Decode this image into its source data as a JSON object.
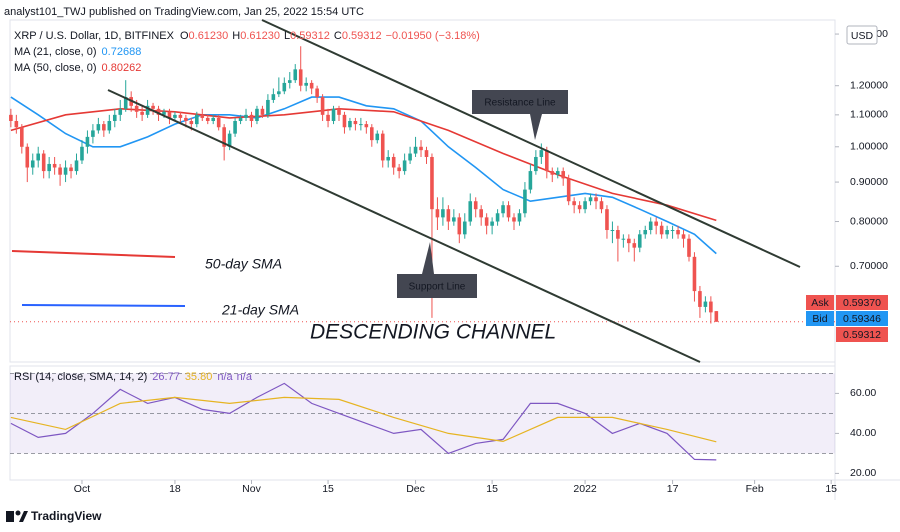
{
  "header": {
    "publisher": "analyst101_TWJ published on TradingView.com, Jan 25, 2022 15:54 UTC",
    "symbol": "XRP / U.S. Dollar, 1D, BITFINEX",
    "ohlc": [
      {
        "key": "O",
        "value": "0.61230"
      },
      {
        "key": "H",
        "value": "0.61230"
      },
      {
        "key": "L",
        "value": "0.59312"
      },
      {
        "key": "C",
        "value": "0.59312"
      }
    ],
    "change": "−0.01950 (−3.18%)"
  },
  "chart_data": [
    {
      "type": "candlestick",
      "currency": "USD",
      "log": true,
      "up_color": "#26a69a",
      "down_color": "#ef5350",
      "xlim": [
        -0.16,
        150.7
      ],
      "xticks": [
        {
          "value": 13,
          "label": "Oct"
        },
        {
          "value": 30,
          "label": "18"
        },
        {
          "value": 44,
          "label": "Nov"
        },
        {
          "value": 58,
          "label": "15"
        },
        {
          "value": 74,
          "label": "Dec"
        },
        {
          "value": 88,
          "label": "15"
        },
        {
          "value": 105,
          "label": "2022"
        },
        {
          "value": 121,
          "label": "17"
        },
        {
          "value": 136,
          "label": "Feb"
        },
        {
          "value": 150,
          "label": "15"
        }
      ],
      "ylim": [
        0.526,
        1.46
      ],
      "yticks": [
        {
          "value": 1.4,
          "label": "1.40000"
        },
        {
          "value": 1.2,
          "label": "1.20000"
        },
        {
          "value": 1.1,
          "label": "1.10000"
        },
        {
          "value": 1.0,
          "label": "1.00000"
        },
        {
          "value": 0.9,
          "label": "0.90000"
        },
        {
          "value": 0.8,
          "label": "0.80000"
        },
        {
          "value": 0.7,
          "label": "0.70000"
        }
      ],
      "quotes": [
        {
          "name": "Ask",
          "value": "0.59370",
          "color": "#ef5350"
        },
        {
          "name": "Bid",
          "value": "0.59346",
          "color": "#2196f3"
        },
        {
          "value": "0.59312",
          "color": "#ef5350"
        }
      ],
      "candles": [
        [
          1.1,
          1.12,
          1.06,
          1.08
        ],
        [
          1.08,
          1.1,
          1.04,
          1.06
        ],
        [
          1.06,
          1.07,
          0.98,
          1.0
        ],
        [
          1.0,
          1.01,
          0.9,
          0.94
        ],
        [
          0.94,
          0.98,
          0.92,
          0.96
        ],
        [
          0.96,
          1.0,
          0.94,
          0.98
        ],
        [
          0.98,
          0.99,
          0.91,
          0.93
        ],
        [
          0.93,
          0.97,
          0.91,
          0.95
        ],
        [
          0.95,
          0.97,
          0.92,
          0.94
        ],
        [
          0.94,
          0.95,
          0.89,
          0.92
        ],
        [
          0.92,
          0.96,
          0.9,
          0.94
        ],
        [
          0.94,
          0.95,
          0.91,
          0.93
        ],
        [
          0.93,
          0.98,
          0.92,
          0.96
        ],
        [
          0.96,
          1.02,
          0.95,
          1.0
        ],
        [
          1.0,
          1.05,
          0.98,
          1.03
        ],
        [
          1.03,
          1.07,
          1.01,
          1.05
        ],
        [
          1.05,
          1.09,
          1.04,
          1.07
        ],
        [
          1.07,
          1.08,
          1.03,
          1.05
        ],
        [
          1.05,
          1.1,
          1.04,
          1.08
        ],
        [
          1.08,
          1.12,
          1.06,
          1.1
        ],
        [
          1.1,
          1.15,
          1.08,
          1.12
        ],
        [
          1.12,
          1.22,
          1.11,
          1.16
        ],
        [
          1.16,
          1.18,
          1.11,
          1.13
        ],
        [
          1.13,
          1.15,
          1.09,
          1.11
        ],
        [
          1.11,
          1.13,
          1.08,
          1.1
        ],
        [
          1.1,
          1.15,
          1.09,
          1.13
        ],
        [
          1.13,
          1.14,
          1.1,
          1.12
        ],
        [
          1.12,
          1.13,
          1.08,
          1.1
        ],
        [
          1.1,
          1.12,
          1.09,
          1.11
        ],
        [
          1.11,
          1.12,
          1.07,
          1.09
        ],
        [
          1.09,
          1.11,
          1.08,
          1.1
        ],
        [
          1.1,
          1.11,
          1.07,
          1.09
        ],
        [
          1.09,
          1.1,
          1.06,
          1.08
        ],
        [
          1.08,
          1.09,
          1.05,
          1.07
        ],
        [
          1.07,
          1.11,
          1.06,
          1.1
        ],
        [
          1.1,
          1.12,
          1.08,
          1.09
        ],
        [
          1.09,
          1.1,
          1.07,
          1.08
        ],
        [
          1.08,
          1.1,
          1.07,
          1.09
        ],
        [
          1.09,
          1.1,
          1.05,
          1.06
        ],
        [
          1.06,
          1.07,
          0.96,
          1.0
        ],
        [
          1.0,
          1.05,
          0.99,
          1.04
        ],
        [
          1.04,
          1.09,
          1.03,
          1.08
        ],
        [
          1.08,
          1.1,
          1.07,
          1.09
        ],
        [
          1.09,
          1.12,
          1.08,
          1.1
        ],
        [
          1.1,
          1.11,
          1.06,
          1.08
        ],
        [
          1.08,
          1.13,
          1.07,
          1.12
        ],
        [
          1.12,
          1.13,
          1.09,
          1.1
        ],
        [
          1.1,
          1.17,
          1.09,
          1.15
        ],
        [
          1.15,
          1.19,
          1.14,
          1.17
        ],
        [
          1.17,
          1.23,
          1.16,
          1.18
        ],
        [
          1.18,
          1.23,
          1.17,
          1.21
        ],
        [
          1.21,
          1.25,
          1.19,
          1.22
        ],
        [
          1.22,
          1.28,
          1.21,
          1.26
        ],
        [
          1.26,
          1.35,
          1.18,
          1.2
        ],
        [
          1.2,
          1.23,
          1.18,
          1.21
        ],
        [
          1.21,
          1.22,
          1.17,
          1.19
        ],
        [
          1.19,
          1.2,
          1.14,
          1.16
        ],
        [
          1.16,
          1.17,
          1.08,
          1.1
        ],
        [
          1.1,
          1.12,
          1.06,
          1.08
        ],
        [
          1.08,
          1.13,
          1.07,
          1.12
        ],
        [
          1.12,
          1.13,
          1.08,
          1.1
        ],
        [
          1.1,
          1.11,
          1.04,
          1.06
        ],
        [
          1.06,
          1.09,
          1.05,
          1.08
        ],
        [
          1.08,
          1.09,
          1.05,
          1.07
        ],
        [
          1.07,
          1.09,
          1.05,
          1.07
        ],
        [
          1.07,
          1.08,
          1.04,
          1.06
        ],
        [
          1.06,
          1.07,
          1.0,
          1.02
        ],
        [
          1.02,
          1.05,
          1.01,
          1.04
        ],
        [
          1.04,
          1.05,
          0.94,
          0.96
        ],
        [
          0.96,
          0.99,
          0.94,
          0.97
        ],
        [
          0.97,
          0.98,
          0.92,
          0.94
        ],
        [
          0.94,
          0.95,
          0.91,
          0.93
        ],
        [
          0.93,
          0.98,
          0.92,
          0.96
        ],
        [
          0.96,
          1.0,
          0.95,
          0.98
        ],
        [
          0.98,
          1.03,
          0.97,
          1.0
        ],
        [
          1.0,
          1.02,
          0.97,
          0.99
        ],
        [
          0.99,
          1.0,
          0.95,
          0.97
        ],
        [
          0.97,
          0.98,
          0.6,
          0.83
        ],
        [
          0.83,
          0.86,
          0.78,
          0.81
        ],
        [
          0.81,
          0.86,
          0.79,
          0.83
        ],
        [
          0.83,
          0.84,
          0.78,
          0.8
        ],
        [
          0.8,
          0.83,
          0.79,
          0.81
        ],
        [
          0.81,
          0.82,
          0.75,
          0.77
        ],
        [
          0.77,
          0.82,
          0.76,
          0.8
        ],
        [
          0.8,
          0.87,
          0.79,
          0.85
        ],
        [
          0.85,
          0.86,
          0.81,
          0.83
        ],
        [
          0.83,
          0.84,
          0.79,
          0.81
        ],
        [
          0.81,
          0.82,
          0.77,
          0.79
        ],
        [
          0.79,
          0.81,
          0.77,
          0.8
        ],
        [
          0.8,
          0.83,
          0.79,
          0.82
        ],
        [
          0.82,
          0.85,
          0.81,
          0.84
        ],
        [
          0.84,
          0.85,
          0.8,
          0.81
        ],
        [
          0.81,
          0.82,
          0.78,
          0.8
        ],
        [
          0.8,
          0.83,
          0.79,
          0.82
        ],
        [
          0.82,
          0.9,
          0.81,
          0.88
        ],
        [
          0.88,
          0.95,
          0.87,
          0.93
        ],
        [
          0.93,
          0.99,
          0.92,
          0.97
        ],
        [
          0.97,
          1.01,
          0.95,
          0.99
        ],
        [
          0.99,
          1.0,
          0.91,
          0.93
        ],
        [
          0.93,
          0.94,
          0.9,
          0.92
        ],
        [
          0.92,
          0.94,
          0.91,
          0.93
        ],
        [
          0.93,
          0.94,
          0.89,
          0.91
        ],
        [
          0.91,
          0.92,
          0.84,
          0.85
        ],
        [
          0.85,
          0.86,
          0.82,
          0.84
        ],
        [
          0.84,
          0.85,
          0.82,
          0.83
        ],
        [
          0.83,
          0.86,
          0.82,
          0.85
        ],
        [
          0.85,
          0.87,
          0.84,
          0.86
        ],
        [
          0.86,
          0.87,
          0.83,
          0.85
        ],
        [
          0.85,
          0.86,
          0.82,
          0.83
        ],
        [
          0.83,
          0.84,
          0.76,
          0.78
        ],
        [
          0.78,
          0.8,
          0.75,
          0.78
        ],
        [
          0.78,
          0.79,
          0.71,
          0.76
        ],
        [
          0.76,
          0.77,
          0.74,
          0.76
        ],
        [
          0.76,
          0.77,
          0.73,
          0.75
        ],
        [
          0.75,
          0.76,
          0.71,
          0.74
        ],
        [
          0.74,
          0.78,
          0.73,
          0.77
        ],
        [
          0.77,
          0.79,
          0.76,
          0.78
        ],
        [
          0.78,
          0.81,
          0.77,
          0.8
        ],
        [
          0.8,
          0.81,
          0.77,
          0.79
        ],
        [
          0.79,
          0.8,
          0.76,
          0.77
        ],
        [
          0.77,
          0.79,
          0.76,
          0.78
        ],
        [
          0.78,
          0.79,
          0.76,
          0.78
        ],
        [
          0.78,
          0.79,
          0.76,
          0.77
        ],
        [
          0.77,
          0.78,
          0.74,
          0.76
        ],
        [
          0.76,
          0.77,
          0.71,
          0.72
        ],
        [
          0.72,
          0.73,
          0.63,
          0.65
        ],
        [
          0.65,
          0.66,
          0.6,
          0.62
        ],
        [
          0.62,
          0.64,
          0.61,
          0.63
        ],
        [
          0.63,
          0.64,
          0.59,
          0.61
        ],
        [
          0.6123,
          0.6123,
          0.59312,
          0.59312
        ]
      ],
      "series": [
        {
          "name": "MA (21, close, 0)",
          "value_label": "0.72688",
          "color": "#2196f3",
          "x": [
            0,
            5,
            10,
            15,
            20,
            25,
            30,
            35,
            40,
            45,
            50,
            55,
            60,
            65,
            70,
            75,
            80,
            85,
            90,
            95,
            100,
            105,
            110,
            115,
            120,
            125,
            129
          ],
          "values": [
            1.16,
            1.1,
            1.04,
            1.0,
            1.0,
            1.03,
            1.07,
            1.1,
            1.1,
            1.09,
            1.12,
            1.16,
            1.16,
            1.13,
            1.12,
            1.08,
            1.0,
            0.94,
            0.88,
            0.85,
            0.86,
            0.87,
            0.86,
            0.83,
            0.8,
            0.77,
            0.72688
          ]
        },
        {
          "name": "MA (50, close, 0)",
          "value_label": "0.80262",
          "color": "#e53935",
          "x": [
            0,
            10,
            20,
            30,
            40,
            50,
            60,
            70,
            80,
            90,
            100,
            110,
            120,
            129
          ],
          "values": [
            1.05,
            1.1,
            1.12,
            1.11,
            1.09,
            1.1,
            1.12,
            1.11,
            1.05,
            0.98,
            0.92,
            0.87,
            0.84,
            0.80262
          ]
        }
      ]
    },
    {
      "type": "line",
      "title": "RSI (14, close, SMA, 14, 2)",
      "ylim": [
        16.7,
        73.7
      ],
      "yticks": [
        {
          "value": 60,
          "label": "60.00"
        },
        {
          "value": 40,
          "label": "40.00"
        },
        {
          "value": 20,
          "label": "20.00"
        }
      ],
      "levels": [
        70,
        50,
        30
      ],
      "band_color": "#7e57c2",
      "series": [
        {
          "value_label": "26.77",
          "color": "#7e57c2",
          "x": [
            0,
            5,
            10,
            15,
            20,
            25,
            30,
            35,
            40,
            45,
            50,
            55,
            60,
            65,
            70,
            75,
            80,
            85,
            90,
            95,
            100,
            105,
            110,
            115,
            120,
            125,
            129
          ],
          "values": [
            45,
            38,
            40,
            50,
            62,
            55,
            58,
            52,
            50,
            58,
            65,
            55,
            50,
            45,
            40,
            42,
            30,
            35,
            37,
            55,
            55,
            50,
            40,
            45,
            40,
            27,
            26.77
          ]
        },
        {
          "value_label": "35.80",
          "color": "#e6b422",
          "x": [
            0,
            10,
            20,
            30,
            40,
            50,
            60,
            70,
            80,
            90,
            100,
            110,
            120,
            129
          ],
          "values": [
            48,
            42,
            55,
            58,
            55,
            58,
            57,
            48,
            40,
            36,
            48,
            48,
            42,
            35.8
          ]
        }
      ],
      "extra_labels": [
        "n/a",
        "n/a"
      ]
    }
  ],
  "annotations": {
    "resistance": "Resistance Line",
    "support": "Support Line",
    "sma50": "50-day SMA",
    "sma21": "21-day SMA",
    "channel": "DESCENDING CHANNEL"
  },
  "footer": "TradingView"
}
